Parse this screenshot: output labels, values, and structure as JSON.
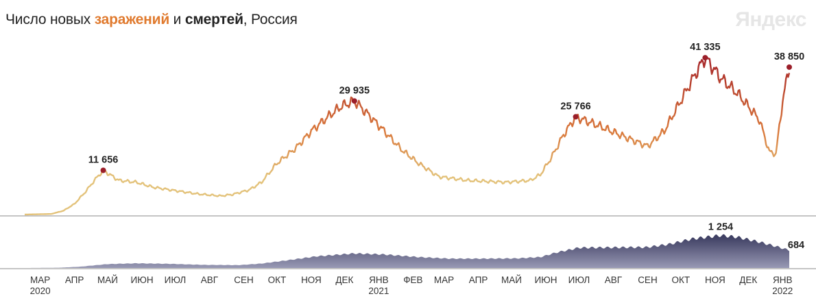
{
  "title": {
    "part1": "Число новых ",
    "infections": "заражений",
    "part2": " и ",
    "deaths": "смертей",
    "part3": ", Россия"
  },
  "logo": "Яндекс",
  "colors": {
    "infections_low": "#e3c27a",
    "infections_mid": "#d9773a",
    "infections_high": "#a8282a",
    "deaths_fill_top": "#3d3e62",
    "deaths_fill_bottom": "#9a9bb6",
    "marker": "#9b1f2a",
    "title_accent": "#e07a2e"
  },
  "chart_data": [
    {
      "type": "line",
      "name": "infections",
      "x_start": "2020-03-01",
      "x_end": "2022-01-21",
      "points": [
        [
          "2020-03-01",
          0
        ],
        [
          "2020-03-25",
          150
        ],
        [
          "2020-04-05",
          1000
        ],
        [
          "2020-04-15",
          2800
        ],
        [
          "2020-04-25",
          6000
        ],
        [
          "2020-05-03",
          9000
        ],
        [
          "2020-05-11",
          11656
        ],
        [
          "2020-05-25",
          9000
        ],
        [
          "2020-06-10",
          8500
        ],
        [
          "2020-06-25",
          7200
        ],
        [
          "2020-07-15",
          6300
        ],
        [
          "2020-08-05",
          5400
        ],
        [
          "2020-08-25",
          4900
        ],
        [
          "2020-09-05",
          5300
        ],
        [
          "2020-09-20",
          6500
        ],
        [
          "2020-10-01",
          8500
        ],
        [
          "2020-10-15",
          13500
        ],
        [
          "2020-11-01",
          17500
        ],
        [
          "2020-11-15",
          22000
        ],
        [
          "2020-12-01",
          26000
        ],
        [
          "2020-12-12",
          28500
        ],
        [
          "2020-12-24",
          29935
        ],
        [
          "2021-01-05",
          26500
        ],
        [
          "2021-01-20",
          22000
        ],
        [
          "2021-02-05",
          17000
        ],
        [
          "2021-02-20",
          13500
        ],
        [
          "2021-03-10",
          10000
        ],
        [
          "2021-04-05",
          9000
        ],
        [
          "2021-05-10",
          8500
        ],
        [
          "2021-06-01",
          9000
        ],
        [
          "2021-06-10",
          10500
        ],
        [
          "2021-06-20",
          15000
        ],
        [
          "2021-07-01",
          21000
        ],
        [
          "2021-07-12",
          25766
        ],
        [
          "2021-08-01",
          23500
        ],
        [
          "2021-08-25",
          20500
        ],
        [
          "2021-09-15",
          18000
        ],
        [
          "2021-09-30",
          22000
        ],
        [
          "2021-10-15",
          30000
        ],
        [
          "2021-10-30",
          38000
        ],
        [
          "2021-11-06",
          41335
        ],
        [
          "2021-11-20",
          36000
        ],
        [
          "2021-12-05",
          32000
        ],
        [
          "2021-12-25",
          25000
        ],
        [
          "2022-01-03",
          16500
        ],
        [
          "2022-01-09",
          16000
        ],
        [
          "2022-01-15",
          30000
        ],
        [
          "2022-01-21",
          38850
        ]
      ],
      "annotations": [
        {
          "date": "2020-05-11",
          "value": 11656,
          "label": "11 656"
        },
        {
          "date": "2020-12-24",
          "value": 29935,
          "label": "29 935"
        },
        {
          "date": "2021-07-12",
          "value": 25766,
          "label": "25 766"
        },
        {
          "date": "2021-11-06",
          "value": 41335,
          "label": "41 335"
        },
        {
          "date": "2022-01-21",
          "value": 38850,
          "label": "38 850"
        }
      ],
      "ylim": [
        0,
        43000
      ]
    },
    {
      "type": "area",
      "name": "deaths",
      "x_start": "2020-03-01",
      "x_end": "2022-01-21",
      "points": [
        [
          "2020-03-01",
          0
        ],
        [
          "2020-04-01",
          10
        ],
        [
          "2020-04-20",
          50
        ],
        [
          "2020-05-15",
          150
        ],
        [
          "2020-06-10",
          180
        ],
        [
          "2020-07-10",
          160
        ],
        [
          "2020-08-10",
          120
        ],
        [
          "2020-09-10",
          110
        ],
        [
          "2020-10-01",
          170
        ],
        [
          "2020-10-25",
          300
        ],
        [
          "2020-11-20",
          450
        ],
        [
          "2020-12-24",
          560
        ],
        [
          "2021-01-20",
          520
        ],
        [
          "2021-02-20",
          420
        ],
        [
          "2021-03-20",
          360
        ],
        [
          "2021-04-20",
          360
        ],
        [
          "2021-05-20",
          370
        ],
        [
          "2021-06-10",
          420
        ],
        [
          "2021-06-25",
          600
        ],
        [
          "2021-07-15",
          780
        ],
        [
          "2021-08-15",
          790
        ],
        [
          "2021-09-15",
          800
        ],
        [
          "2021-10-05",
          920
        ],
        [
          "2021-10-25",
          1120
        ],
        [
          "2021-11-20",
          1254
        ],
        [
          "2021-12-05",
          1190
        ],
        [
          "2021-12-25",
          1000
        ],
        [
          "2022-01-10",
          820
        ],
        [
          "2022-01-21",
          684
        ]
      ],
      "annotations": [
        {
          "date": "2021-11-20",
          "value": 1254,
          "label": "1 254"
        },
        {
          "date": "2022-01-21",
          "value": 684,
          "label": "684"
        }
      ],
      "ylim": [
        0,
        1400
      ]
    }
  ],
  "x_ticks": [
    {
      "date": "2020-03-15",
      "label": "МАР",
      "sub": "2020"
    },
    {
      "date": "2020-04-15",
      "label": "АПР",
      "sub": ""
    },
    {
      "date": "2020-05-15",
      "label": "МАЙ",
      "sub": ""
    },
    {
      "date": "2020-06-15",
      "label": "ИЮН",
      "sub": ""
    },
    {
      "date": "2020-07-15",
      "label": "ИЮЛ",
      "sub": ""
    },
    {
      "date": "2020-08-15",
      "label": "АВГ",
      "sub": ""
    },
    {
      "date": "2020-09-15",
      "label": "СЕН",
      "sub": ""
    },
    {
      "date": "2020-10-15",
      "label": "ОКТ",
      "sub": ""
    },
    {
      "date": "2020-11-15",
      "label": "НОЯ",
      "sub": ""
    },
    {
      "date": "2020-12-15",
      "label": "ДЕК",
      "sub": ""
    },
    {
      "date": "2021-01-15",
      "label": "ЯНВ",
      "sub": "2021"
    },
    {
      "date": "2021-02-15",
      "label": "ФЕВ",
      "sub": ""
    },
    {
      "date": "2021-03-15",
      "label": "МАР",
      "sub": ""
    },
    {
      "date": "2021-04-15",
      "label": "АПР",
      "sub": ""
    },
    {
      "date": "2021-05-15",
      "label": "МАЙ",
      "sub": ""
    },
    {
      "date": "2021-06-15",
      "label": "ИЮН",
      "sub": ""
    },
    {
      "date": "2021-07-15",
      "label": "ИЮЛ",
      "sub": ""
    },
    {
      "date": "2021-08-15",
      "label": "АВГ",
      "sub": ""
    },
    {
      "date": "2021-09-15",
      "label": "СЕН",
      "sub": ""
    },
    {
      "date": "2021-10-15",
      "label": "ОКТ",
      "sub": ""
    },
    {
      "date": "2021-11-15",
      "label": "НОЯ",
      "sub": ""
    },
    {
      "date": "2021-12-15",
      "label": "ДЕК",
      "sub": ""
    },
    {
      "date": "2022-01-15",
      "label": "ЯНВ",
      "sub": "2022"
    }
  ]
}
